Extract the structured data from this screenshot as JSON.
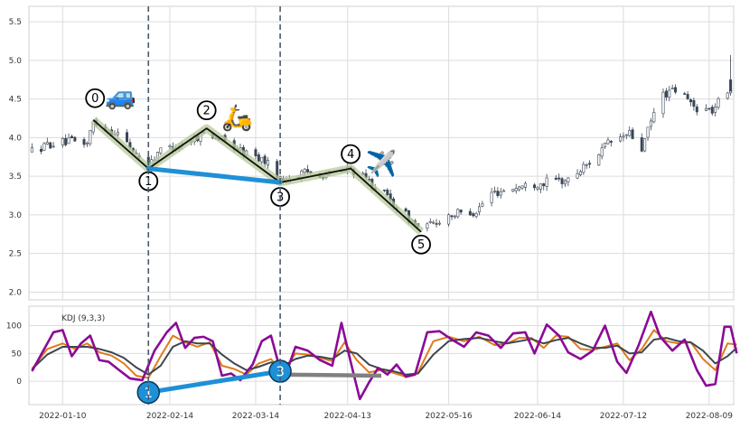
{
  "chart_data": [
    {
      "type": "candlestick",
      "title": "",
      "xlabel": "",
      "ylabel": "",
      "ylim": [
        1.9,
        5.7
      ],
      "yticks": [
        "2.0",
        "2.5",
        "3.0",
        "3.5",
        "4.0",
        "4.5",
        "5.0",
        "5.5"
      ],
      "x_date_range": [
        "2021-12-30",
        "2022-08-17"
      ],
      "xticks": [
        "2022-01-10",
        "2022-02-14",
        "2022-03-14",
        "2022-04-13",
        "2022-05-16",
        "2022-06-14",
        "2022-07-12",
        "2022-08-09"
      ],
      "grid": true,
      "vertical_dashed_lines": [
        "2022-02-07",
        "2022-03-22"
      ],
      "elliott_wave": [
        {
          "label": "0",
          "date": "2022-01-20",
          "value": 4.23
        },
        {
          "label": "1",
          "date": "2022-02-07",
          "value": 3.6
        },
        {
          "label": "2",
          "date": "2022-02-26",
          "value": 4.12
        },
        {
          "label": "3",
          "date": "2022-03-22",
          "value": 3.42
        },
        {
          "label": "4",
          "date": "2022-04-14",
          "value": 3.6
        },
        {
          "label": "5",
          "date": "2022-05-07",
          "value": 2.78
        }
      ],
      "divergence_line": [
        {
          "date": "2022-02-07",
          "value": 3.6
        },
        {
          "date": "2022-03-22",
          "value": 3.42
        }
      ],
      "icons": [
        {
          "name": "car-icon",
          "glyph": "🚙",
          "date": "2022-01-29",
          "value": 4.55
        },
        {
          "name": "scooter-icon",
          "glyph": "🛵",
          "date": "2022-03-08",
          "value": 4.27
        },
        {
          "name": "airplane-icon",
          "glyph": "✈️",
          "date": "2022-04-24",
          "value": 3.67
        }
      ],
      "price_anchors": [
        {
          "date": "2021-12-31",
          "value": 3.83
        },
        {
          "date": "2022-01-06",
          "value": 3.92
        },
        {
          "date": "2022-01-13",
          "value": 3.95
        },
        {
          "date": "2022-01-18",
          "value": 3.93
        },
        {
          "date": "2022-01-20",
          "value": 4.2
        },
        {
          "date": "2022-01-28",
          "value": 4.05
        },
        {
          "date": "2022-02-07",
          "value": 3.62
        },
        {
          "date": "2022-02-10",
          "value": 3.82
        },
        {
          "date": "2022-02-18",
          "value": 3.92
        },
        {
          "date": "2022-02-26",
          "value": 4.08
        },
        {
          "date": "2022-03-08",
          "value": 3.85
        },
        {
          "date": "2022-03-17",
          "value": 3.7
        },
        {
          "date": "2022-03-22",
          "value": 3.45
        },
        {
          "date": "2022-03-31",
          "value": 3.55
        },
        {
          "date": "2022-04-08",
          "value": 3.52
        },
        {
          "date": "2022-04-14",
          "value": 3.6
        },
        {
          "date": "2022-04-24",
          "value": 3.3
        },
        {
          "date": "2022-05-07",
          "value": 2.8
        },
        {
          "date": "2022-05-16",
          "value": 3.0
        },
        {
          "date": "2022-05-25",
          "value": 3.05
        },
        {
          "date": "2022-05-30",
          "value": 3.28
        },
        {
          "date": "2022-06-06",
          "value": 3.35
        },
        {
          "date": "2022-06-16",
          "value": 3.42
        },
        {
          "date": "2022-06-24",
          "value": 3.45
        },
        {
          "date": "2022-06-30",
          "value": 3.65
        },
        {
          "date": "2022-07-07",
          "value": 3.92
        },
        {
          "date": "2022-07-14",
          "value": 4.05
        },
        {
          "date": "2022-07-18",
          "value": 3.85
        },
        {
          "date": "2022-07-24",
          "value": 4.55
        },
        {
          "date": "2022-07-30",
          "value": 4.62
        },
        {
          "date": "2022-08-04",
          "value": 4.4
        },
        {
          "date": "2022-08-10",
          "value": 4.35
        },
        {
          "date": "2022-08-17",
          "value": 4.72
        }
      ]
    },
    {
      "type": "line",
      "title": "",
      "legend_text": "KDJ (9,3,3)",
      "ylim": [
        -42,
        135
      ],
      "yticks": [
        "0",
        "50",
        "100"
      ],
      "grid": true,
      "divergence_points": [
        {
          "label": "1",
          "date": "2022-02-07",
          "value": -20
        },
        {
          "label": "3",
          "date": "2022-03-22",
          "value": 18
        }
      ],
      "flat_line": [
        {
          "date": "2022-03-22",
          "value": 12
        },
        {
          "date": "2022-04-24",
          "value": 10
        }
      ],
      "series": [
        {
          "key": "K",
          "color": "#e07b1a",
          "points": [
            [
              "2021-12-31",
              22
            ],
            [
              "2022-01-05",
              58
            ],
            [
              "2022-01-10",
              68
            ],
            [
              "2022-01-14",
              58
            ],
            [
              "2022-01-18",
              68
            ],
            [
              "2022-01-22",
              52
            ],
            [
              "2022-01-26",
              46
            ],
            [
              "2022-01-30",
              32
            ],
            [
              "2022-02-03",
              10
            ],
            [
              "2022-02-07",
              6
            ],
            [
              "2022-02-11",
              45
            ],
            [
              "2022-02-15",
              82
            ],
            [
              "2022-02-19",
              70
            ],
            [
              "2022-02-23",
              62
            ],
            [
              "2022-02-27",
              70
            ],
            [
              "2022-03-03",
              28
            ],
            [
              "2022-03-07",
              22
            ],
            [
              "2022-03-11",
              12
            ],
            [
              "2022-03-15",
              32
            ],
            [
              "2022-03-19",
              40
            ],
            [
              "2022-03-23",
              15
            ],
            [
              "2022-03-27",
              50
            ],
            [
              "2022-03-31",
              48
            ],
            [
              "2022-04-04",
              42
            ],
            [
              "2022-04-08",
              36
            ],
            [
              "2022-04-12",
              70
            ],
            [
              "2022-04-16",
              38
            ],
            [
              "2022-04-20",
              16
            ],
            [
              "2022-04-24",
              20
            ],
            [
              "2022-04-28",
              15
            ],
            [
              "2022-05-02",
              8
            ],
            [
              "2022-05-06",
              16
            ],
            [
              "2022-05-11",
              72
            ],
            [
              "2022-05-16",
              80
            ],
            [
              "2022-05-21",
              72
            ],
            [
              "2022-05-26",
              80
            ],
            [
              "2022-05-31",
              65
            ],
            [
              "2022-06-04",
              68
            ],
            [
              "2022-06-08",
              78
            ],
            [
              "2022-06-12",
              78
            ],
            [
              "2022-06-16",
              60
            ],
            [
              "2022-06-20",
              82
            ],
            [
              "2022-06-24",
              80
            ],
            [
              "2022-06-28",
              58
            ],
            [
              "2022-07-02",
              56
            ],
            [
              "2022-07-06",
              62
            ],
            [
              "2022-07-10",
              68
            ],
            [
              "2022-07-14",
              38
            ],
            [
              "2022-07-18",
              58
            ],
            [
              "2022-07-22",
              92
            ],
            [
              "2022-07-26",
              72
            ],
            [
              "2022-07-30",
              68
            ],
            [
              "2022-08-03",
              70
            ],
            [
              "2022-08-07",
              40
            ],
            [
              "2022-08-11",
              20
            ],
            [
              "2022-08-15",
              68
            ],
            [
              "2022-08-18",
              66
            ]
          ]
        },
        {
          "key": "D",
          "color": "#3d4650",
          "points": [
            [
              "2021-12-31",
              22
            ],
            [
              "2022-01-05",
              48
            ],
            [
              "2022-01-10",
              62
            ],
            [
              "2022-01-14",
              62
            ],
            [
              "2022-01-18",
              62
            ],
            [
              "2022-01-22",
              58
            ],
            [
              "2022-01-26",
              52
            ],
            [
              "2022-01-30",
              42
            ],
            [
              "2022-02-03",
              25
            ],
            [
              "2022-02-07",
              12
            ],
            [
              "2022-02-11",
              28
            ],
            [
              "2022-02-15",
              62
            ],
            [
              "2022-02-19",
              72
            ],
            [
              "2022-02-23",
              68
            ],
            [
              "2022-02-27",
              68
            ],
            [
              "2022-03-03",
              48
            ],
            [
              "2022-03-07",
              32
            ],
            [
              "2022-03-11",
              20
            ],
            [
              "2022-03-15",
              26
            ],
            [
              "2022-03-19",
              34
            ],
            [
              "2022-03-23",
              28
            ],
            [
              "2022-03-27",
              40
            ],
            [
              "2022-03-31",
              46
            ],
            [
              "2022-04-04",
              44
            ],
            [
              "2022-04-08",
              40
            ],
            [
              "2022-04-12",
              55
            ],
            [
              "2022-04-16",
              50
            ],
            [
              "2022-04-20",
              30
            ],
            [
              "2022-04-24",
              22
            ],
            [
              "2022-04-28",
              18
            ],
            [
              "2022-05-02",
              12
            ],
            [
              "2022-05-06",
              14
            ],
            [
              "2022-05-11",
              48
            ],
            [
              "2022-05-16",
              72
            ],
            [
              "2022-05-21",
              76
            ],
            [
              "2022-05-26",
              78
            ],
            [
              "2022-05-31",
              72
            ],
            [
              "2022-06-04",
              68
            ],
            [
              "2022-06-08",
              72
            ],
            [
              "2022-06-12",
              76
            ],
            [
              "2022-06-16",
              68
            ],
            [
              "2022-06-20",
              74
            ],
            [
              "2022-06-24",
              78
            ],
            [
              "2022-06-28",
              68
            ],
            [
              "2022-07-02",
              60
            ],
            [
              "2022-07-06",
              60
            ],
            [
              "2022-07-10",
              64
            ],
            [
              "2022-07-14",
              50
            ],
            [
              "2022-07-18",
              52
            ],
            [
              "2022-07-22",
              75
            ],
            [
              "2022-07-26",
              78
            ],
            [
              "2022-07-30",
              72
            ],
            [
              "2022-08-03",
              70
            ],
            [
              "2022-08-07",
              55
            ],
            [
              "2022-08-11",
              32
            ],
            [
              "2022-08-15",
              45
            ],
            [
              "2022-08-18",
              60
            ]
          ]
        },
        {
          "key": "J",
          "color": "#8b0a96",
          "points": [
            [
              "2021-12-31",
              18
            ],
            [
              "2022-01-04",
              58
            ],
            [
              "2022-01-07",
              88
            ],
            [
              "2022-01-10",
              92
            ],
            [
              "2022-01-13",
              45
            ],
            [
              "2022-01-16",
              68
            ],
            [
              "2022-01-19",
              82
            ],
            [
              "2022-01-22",
              38
            ],
            [
              "2022-01-25",
              35
            ],
            [
              "2022-01-28",
              22
            ],
            [
              "2022-02-01",
              5
            ],
            [
              "2022-02-05",
              2
            ],
            [
              "2022-02-09",
              55
            ],
            [
              "2022-02-13",
              88
            ],
            [
              "2022-02-16",
              105
            ],
            [
              "2022-02-19",
              60
            ],
            [
              "2022-02-22",
              78
            ],
            [
              "2022-02-25",
              80
            ],
            [
              "2022-02-28",
              72
            ],
            [
              "2022-03-03",
              10
            ],
            [
              "2022-03-06",
              14
            ],
            [
              "2022-03-09",
              2
            ],
            [
              "2022-03-13",
              30
            ],
            [
              "2022-03-16",
              72
            ],
            [
              "2022-03-19",
              82
            ],
            [
              "2022-03-23",
              0
            ],
            [
              "2022-03-27",
              62
            ],
            [
              "2022-03-31",
              55
            ],
            [
              "2022-04-04",
              38
            ],
            [
              "2022-04-08",
              28
            ],
            [
              "2022-04-11",
              105
            ],
            [
              "2022-04-14",
              35
            ],
            [
              "2022-04-17",
              -32
            ],
            [
              "2022-04-20",
              -2
            ],
            [
              "2022-04-23",
              24
            ],
            [
              "2022-04-26",
              12
            ],
            [
              "2022-04-29",
              30
            ],
            [
              "2022-05-02",
              8
            ],
            [
              "2022-05-05",
              12
            ],
            [
              "2022-05-09",
              88
            ],
            [
              "2022-05-13",
              90
            ],
            [
              "2022-05-17",
              75
            ],
            [
              "2022-05-21",
              62
            ],
            [
              "2022-05-25",
              88
            ],
            [
              "2022-05-29",
              82
            ],
            [
              "2022-06-02",
              60
            ],
            [
              "2022-06-06",
              86
            ],
            [
              "2022-06-10",
              88
            ],
            [
              "2022-06-13",
              50
            ],
            [
              "2022-06-17",
              102
            ],
            [
              "2022-06-21",
              82
            ],
            [
              "2022-06-24",
              52
            ],
            [
              "2022-06-28",
              40
            ],
            [
              "2022-07-02",
              55
            ],
            [
              "2022-07-06",
              100
            ],
            [
              "2022-07-10",
              35
            ],
            [
              "2022-07-13",
              15
            ],
            [
              "2022-07-17",
              65
            ],
            [
              "2022-07-21",
              125
            ],
            [
              "2022-07-24",
              80
            ],
            [
              "2022-07-28",
              55
            ],
            [
              "2022-08-01",
              75
            ],
            [
              "2022-08-05",
              20
            ],
            [
              "2022-08-08",
              -8
            ],
            [
              "2022-08-11",
              -5
            ],
            [
              "2022-08-14",
              98
            ],
            [
              "2022-08-16",
              98
            ],
            [
              "2022-08-18",
              50
            ]
          ]
        }
      ]
    }
  ]
}
